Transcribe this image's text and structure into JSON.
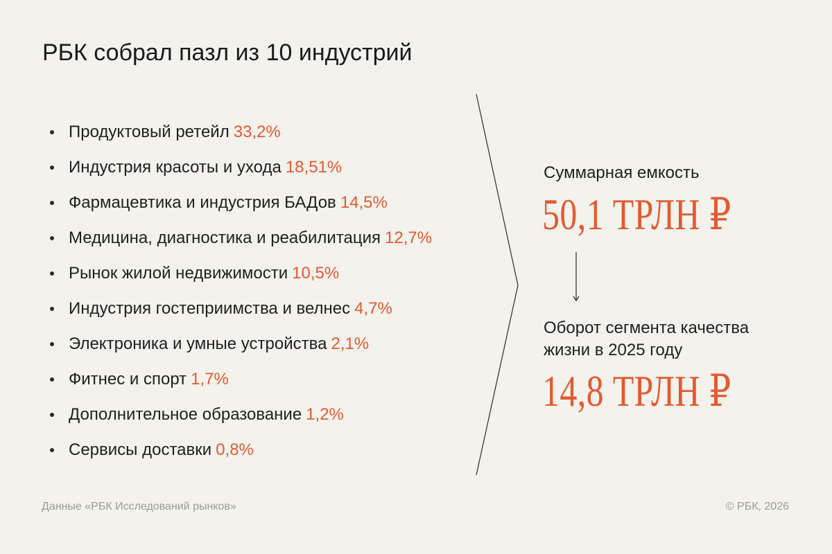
{
  "title": "РБК собрал пазл из 10 индустрий",
  "industries": [
    {
      "name": "Продуктовый ретейл",
      "value": "33,2%"
    },
    {
      "name": "Индустрия красоты и ухода",
      "value": "18,51%"
    },
    {
      "name": "Фармацевтика и индустрия БАДов",
      "value": "14,5%"
    },
    {
      "name": "Медицина, диагностика и реабилитация",
      "value": "12,7%"
    },
    {
      "name": "Рынок жилой недвижимости",
      "value": "10,5%"
    },
    {
      "name": "Индустрия гостеприимства и велнес",
      "value": "4,7%"
    },
    {
      "name": "Электроника и умные устройства",
      "value": "2,1%"
    },
    {
      "name": "Фитнес и спорт",
      "value": "1,7%"
    },
    {
      "name": "Дополнительное образование",
      "value": "1,2%"
    },
    {
      "name": "Сервисы доставки",
      "value": "0,8%"
    }
  ],
  "total": {
    "label": "Суммарная емкость",
    "value": "50,1 ТРЛН ₽"
  },
  "turnover": {
    "label_line1": "Оборот сегмента качества",
    "label_line2": "жизни в 2025 году",
    "value": "14,8 ТРЛН ₽"
  },
  "footer": {
    "source": "Данные «РБК Исследований рынков»",
    "copyright": "© РБК, 2026"
  },
  "colors": {
    "background": "#f3f2ec",
    "accent": "#e25a31",
    "text": "#1f1f1f",
    "muted": "#9b9b97"
  },
  "icons": {
    "chevron": "chevron-right-icon",
    "arrow": "arrow-down-icon"
  }
}
